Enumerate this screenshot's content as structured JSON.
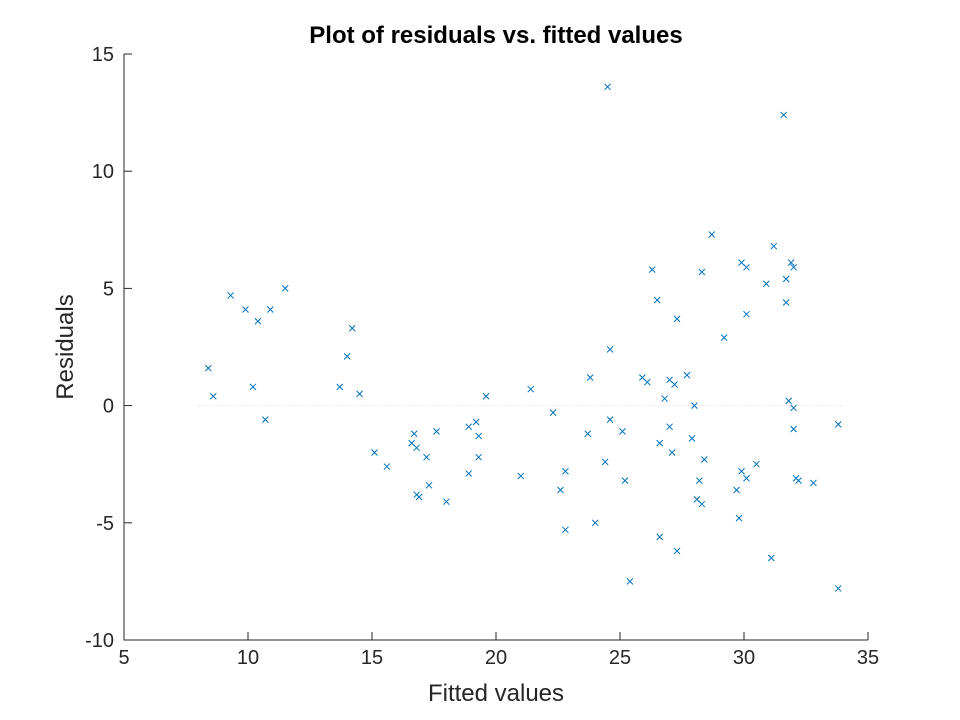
{
  "chart_data": {
    "type": "scatter",
    "title": "Plot of residuals vs. fitted values",
    "xlabel": "Fitted values",
    "ylabel": "Residuals",
    "xlim": [
      5,
      35
    ],
    "ylim": [
      -10,
      15
    ],
    "xticks": [
      5,
      10,
      15,
      20,
      25,
      30,
      35
    ],
    "yticks": [
      -10,
      -5,
      0,
      5,
      10,
      15
    ],
    "marker": "x",
    "marker_color": "#0072BD",
    "reference_line_y": 0,
    "grid": false,
    "series": [
      {
        "points": [
          [
            8.4,
            1.6
          ],
          [
            8.6,
            0.4
          ],
          [
            9.3,
            4.7
          ],
          [
            9.9,
            4.1
          ],
          [
            10.2,
            0.8
          ],
          [
            10.4,
            3.6
          ],
          [
            10.7,
            -0.6
          ],
          [
            10.9,
            4.1
          ],
          [
            11.5,
            5.0
          ],
          [
            13.7,
            0.8
          ],
          [
            14.0,
            2.1
          ],
          [
            14.2,
            3.3
          ],
          [
            14.5,
            0.5
          ],
          [
            15.1,
            -2.0
          ],
          [
            15.6,
            -2.6
          ],
          [
            16.6,
            -1.6
          ],
          [
            16.7,
            -1.2
          ],
          [
            16.8,
            -1.8
          ],
          [
            16.8,
            -3.8
          ],
          [
            16.9,
            -3.9
          ],
          [
            17.2,
            -2.2
          ],
          [
            17.3,
            -3.4
          ],
          [
            17.6,
            -1.1
          ],
          [
            18.0,
            -4.1
          ],
          [
            18.9,
            -0.9
          ],
          [
            18.9,
            -2.9
          ],
          [
            19.2,
            -0.7
          ],
          [
            19.3,
            -1.3
          ],
          [
            19.3,
            -2.2
          ],
          [
            19.6,
            0.4
          ],
          [
            21.0,
            -3.0
          ],
          [
            21.4,
            0.7
          ],
          [
            22.3,
            -0.3
          ],
          [
            22.6,
            -3.6
          ],
          [
            22.8,
            -2.8
          ],
          [
            22.8,
            -5.3
          ],
          [
            23.7,
            -1.2
          ],
          [
            23.8,
            1.2
          ],
          [
            24.0,
            -5.0
          ],
          [
            24.4,
            -2.4
          ],
          [
            24.5,
            13.6
          ],
          [
            24.6,
            -0.6
          ],
          [
            24.6,
            2.4
          ],
          [
            25.1,
            -1.1
          ],
          [
            25.2,
            -3.2
          ],
          [
            25.4,
            -7.5
          ],
          [
            25.9,
            1.2
          ],
          [
            26.1,
            1.0
          ],
          [
            26.3,
            5.8
          ],
          [
            26.5,
            4.5
          ],
          [
            26.6,
            -1.6
          ],
          [
            26.6,
            -5.6
          ],
          [
            26.8,
            0.3
          ],
          [
            27.0,
            -0.9
          ],
          [
            27.0,
            1.1
          ],
          [
            27.1,
            -2.0
          ],
          [
            27.2,
            0.9
          ],
          [
            27.3,
            -6.2
          ],
          [
            27.3,
            3.7
          ],
          [
            27.7,
            1.3
          ],
          [
            27.9,
            -1.4
          ],
          [
            28.0,
            0.0
          ],
          [
            28.1,
            -4.0
          ],
          [
            28.2,
            -3.2
          ],
          [
            28.3,
            -4.2
          ],
          [
            28.3,
            5.7
          ],
          [
            28.4,
            -2.3
          ],
          [
            28.7,
            7.3
          ],
          [
            29.2,
            2.9
          ],
          [
            29.7,
            -3.6
          ],
          [
            29.8,
            -4.8
          ],
          [
            29.9,
            -2.8
          ],
          [
            29.9,
            6.1
          ],
          [
            30.1,
            -3.1
          ],
          [
            30.1,
            3.9
          ],
          [
            30.1,
            5.9
          ],
          [
            30.5,
            -2.5
          ],
          [
            30.9,
            5.2
          ],
          [
            31.1,
            -6.5
          ],
          [
            31.2,
            6.8
          ],
          [
            31.6,
            12.4
          ],
          [
            31.7,
            4.4
          ],
          [
            31.7,
            5.4
          ],
          [
            31.8,
            0.2
          ],
          [
            31.9,
            6.1
          ],
          [
            32.0,
            -0.1
          ],
          [
            32.0,
            -1.0
          ],
          [
            32.0,
            5.9
          ],
          [
            32.1,
            -3.1
          ],
          [
            32.2,
            -3.2
          ],
          [
            32.8,
            -3.3
          ],
          [
            33.8,
            -0.8
          ],
          [
            33.8,
            -7.8
          ]
        ]
      }
    ]
  }
}
